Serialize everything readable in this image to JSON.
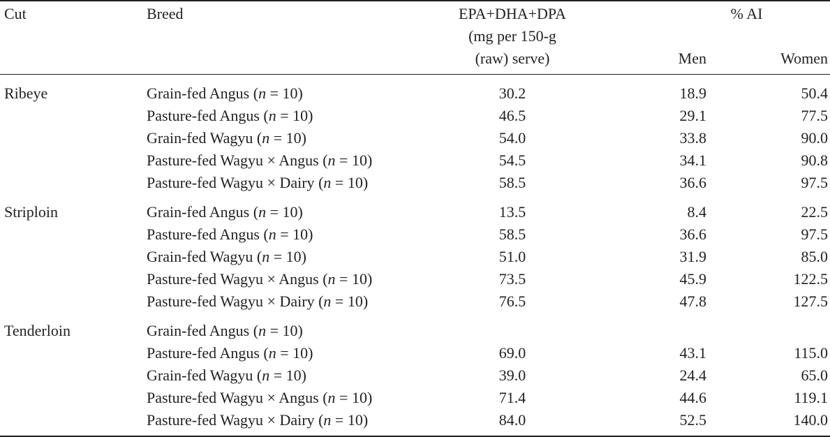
{
  "header": {
    "cut": "Cut",
    "breed": "Breed",
    "value_line1": "EPA+DHA+DPA",
    "value_line2": "(mg per 150-g",
    "value_line3": "(raw) serve)",
    "ai_group": "% AI",
    "men": "Men",
    "women": "Women"
  },
  "groups": [
    {
      "cut": "Ribeye",
      "rows": [
        {
          "breed": "Grain-fed Angus",
          "n": "10",
          "value": "30.2",
          "men": "18.9",
          "women": "50.4"
        },
        {
          "breed": "Pasture-fed Angus",
          "n": "10",
          "value": "46.5",
          "men": "29.1",
          "women": "77.5"
        },
        {
          "breed": "Grain-fed Wagyu",
          "n": "10",
          "value": "54.0",
          "men": "33.8",
          "women": "90.0"
        },
        {
          "breed": "Pasture-fed Wagyu × Angus",
          "n": "10",
          "value": "54.5",
          "men": "34.1",
          "women": "90.8"
        },
        {
          "breed": "Pasture-fed Wagyu × Dairy",
          "n": "10",
          "value": "58.5",
          "men": "36.6",
          "women": "97.5"
        }
      ]
    },
    {
      "cut": "Striploin",
      "rows": [
        {
          "breed": "Grain-fed Angus",
          "n": "10",
          "value": "13.5",
          "men": "8.4",
          "women": "22.5"
        },
        {
          "breed": "Pasture-fed Angus",
          "n": "10",
          "value": "58.5",
          "men": "36.6",
          "women": "97.5"
        },
        {
          "breed": "Grain-fed Wagyu",
          "n": "10",
          "value": "51.0",
          "men": "31.9",
          "women": "85.0"
        },
        {
          "breed": "Pasture-fed Wagyu × Angus",
          "n": "10",
          "value": "73.5",
          "men": "45.9",
          "women": "122.5"
        },
        {
          "breed": "Pasture-fed Wagyu × Dairy",
          "n": "10",
          "value": "76.5",
          "men": "47.8",
          "women": "127.5"
        }
      ]
    },
    {
      "cut": "Tenderloin",
      "rows": [
        {
          "breed": "Grain-fed Angus",
          "n": "10",
          "value": "",
          "men": "",
          "women": ""
        },
        {
          "breed": "Pasture-fed Angus",
          "n": "10",
          "value": "69.0",
          "men": "43.1",
          "women": "115.0"
        },
        {
          "breed": "Grain-fed Wagyu",
          "n": "10",
          "value": "39.0",
          "men": "24.4",
          "women": "65.0"
        },
        {
          "breed": "Pasture-fed Wagyu × Angus",
          "n": "10",
          "value": "71.4",
          "men": "44.6",
          "women": "119.1"
        },
        {
          "breed": "Pasture-fed Wagyu × Dairy",
          "n": "10",
          "value": "84.0",
          "men": "52.5",
          "women": "140.0"
        }
      ]
    }
  ]
}
